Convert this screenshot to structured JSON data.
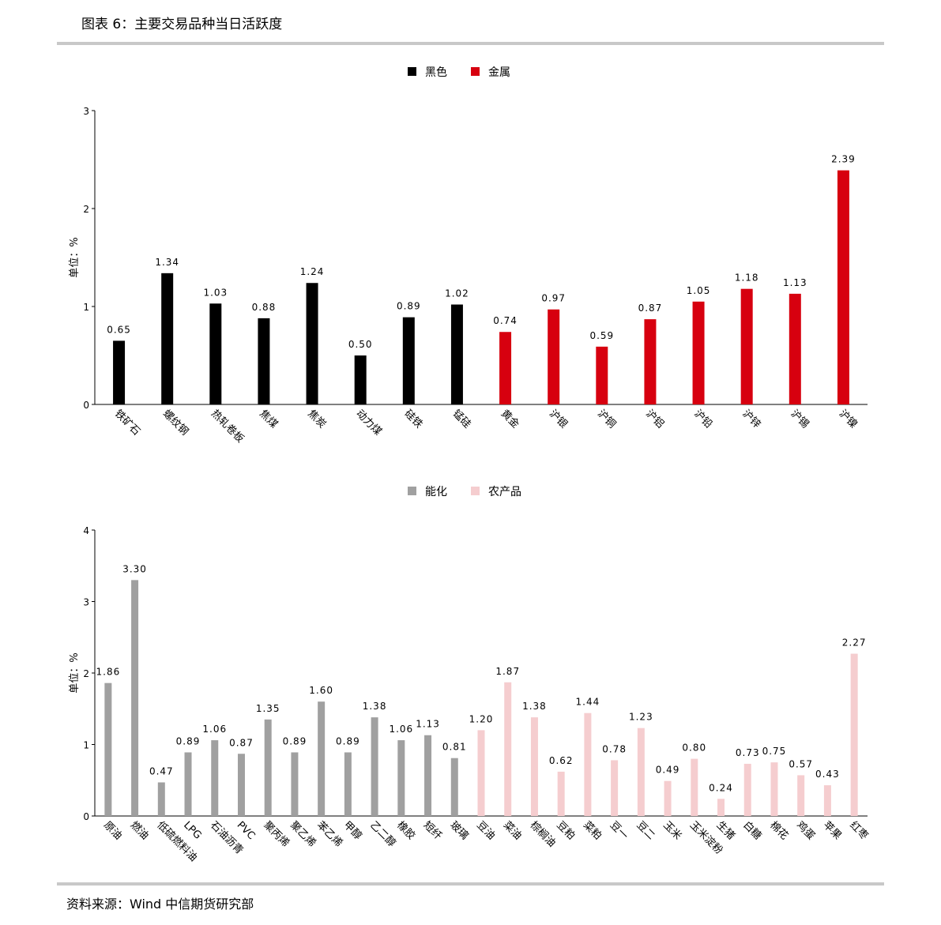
{
  "figure": {
    "title": "图表 6：主要交易品种当日活跃度",
    "source": "资料来源：Wind 中信期货研究部"
  },
  "colors": {
    "black_series": "#000000",
    "metal_series": "#d7000f",
    "energy_series": "#a0a0a0",
    "agri_series": "#f5cdcf",
    "rule": "#c8c8c8"
  },
  "chart_data": [
    {
      "type": "bar",
      "ylabel": "单位：%",
      "ylim": [
        0,
        3
      ],
      "yticks": [
        "0",
        "1",
        "2",
        "3"
      ],
      "legend_position": "top-center",
      "grid": false,
      "categories": [
        "铁矿石",
        "螺纹钢",
        "热轧卷板",
        "焦煤",
        "焦炭",
        "动力煤",
        "硅铁",
        "锰硅",
        "黄金",
        "沪银",
        "沪铜",
        "沪铝",
        "沪铅",
        "沪锌",
        "沪锡",
        "沪镍"
      ],
      "series": [
        {
          "name": "黑色",
          "color": "#000000",
          "values": [
            0.65,
            1.34,
            1.03,
            0.88,
            1.24,
            0.5,
            0.89,
            1.02,
            null,
            null,
            null,
            null,
            null,
            null,
            null,
            null
          ],
          "labels": [
            "0.65",
            "1.34",
            "1.03",
            "0.88",
            "1.24",
            "0.50",
            "0.89",
            "1.02",
            "",
            "",
            "",
            "",
            "",
            "",
            "",
            ""
          ]
        },
        {
          "name": "金属",
          "color": "#d7000f",
          "values": [
            null,
            null,
            null,
            null,
            null,
            null,
            null,
            null,
            0.74,
            0.97,
            0.59,
            0.87,
            1.05,
            1.18,
            1.13,
            2.39
          ],
          "labels": [
            "",
            "",
            "",
            "",
            "",
            "",
            "",
            "",
            "0.74",
            "0.97",
            "0.59",
            "0.87",
            "1.05",
            "1.18",
            "1.13",
            "2.39"
          ]
        }
      ]
    },
    {
      "type": "bar",
      "ylabel": "单位：%",
      "ylim": [
        0,
        4
      ],
      "yticks": [
        "0",
        "1",
        "2",
        "3",
        "4"
      ],
      "legend_position": "top-center",
      "grid": false,
      "categories": [
        "原油",
        "燃油",
        "低硫燃料油",
        "LPG",
        "石油沥青",
        "PVC",
        "聚丙烯",
        "聚乙烯",
        "苯乙烯",
        "甲醇",
        "乙二醇",
        "橡胶",
        "短纤",
        "玻璃",
        "豆油",
        "菜油",
        "棕榈油",
        "豆粕",
        "菜粕",
        "豆一",
        "豆二",
        "玉米",
        "玉米淀粉",
        "生猪",
        "白糖",
        "棉花",
        "鸡蛋",
        "苹果",
        "红枣"
      ],
      "series": [
        {
          "name": "能化",
          "color": "#a0a0a0",
          "values": [
            1.86,
            3.3,
            0.47,
            0.89,
            1.06,
            0.87,
            1.35,
            0.89,
            1.6,
            0.89,
            1.38,
            1.06,
            1.13,
            0.81,
            null,
            null,
            null,
            null,
            null,
            null,
            null,
            null,
            null,
            null,
            null,
            null,
            null,
            null,
            null
          ],
          "labels": [
            "1.86",
            "3.30",
            "0.47",
            "0.89",
            "1.06",
            "0.87",
            "1.35",
            "0.89",
            "1.60",
            "0.89",
            "1.38",
            "1.06",
            "1.13",
            "0.81",
            "",
            "",
            "",
            "",
            "",
            "",
            "",
            "",
            "",
            "",
            "",
            "",
            "",
            "",
            ""
          ]
        },
        {
          "name": "农产品",
          "color": "#f5cdcf",
          "values": [
            null,
            null,
            null,
            null,
            null,
            null,
            null,
            null,
            null,
            null,
            null,
            null,
            null,
            null,
            1.2,
            1.87,
            1.38,
            0.62,
            1.44,
            0.78,
            1.23,
            0.49,
            0.8,
            0.24,
            0.73,
            0.75,
            0.57,
            0.43,
            2.27
          ],
          "labels": [
            "",
            "",
            "",
            "",
            "",
            "",
            "",
            "",
            "",
            "",
            "",
            "",
            "",
            "",
            "1.20",
            "1.87",
            "1.38",
            "0.62",
            "1.44",
            "0.78",
            "1.23",
            "0.49",
            "0.80",
            "0.24",
            "0.73",
            "0.75",
            "0.57",
            "0.43",
            "2.27"
          ]
        }
      ]
    }
  ]
}
